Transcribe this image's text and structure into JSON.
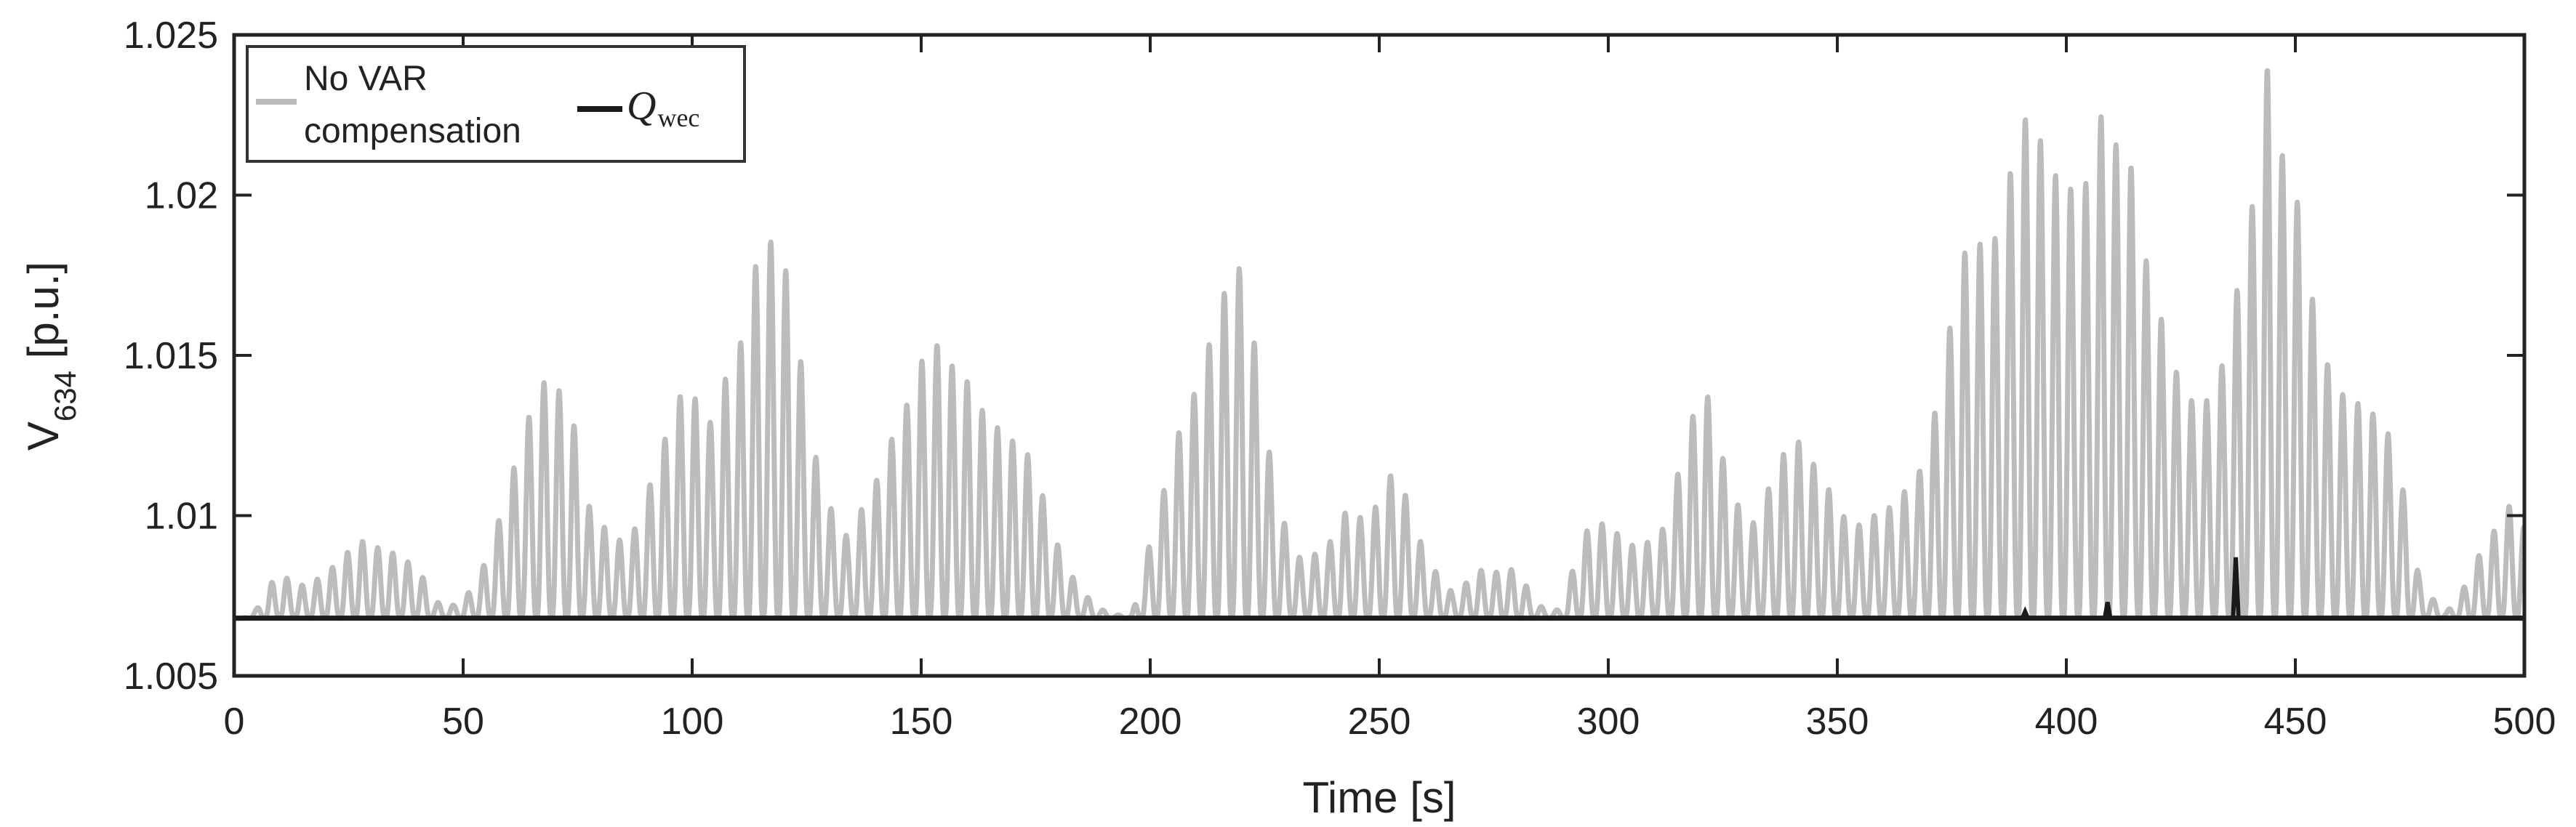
{
  "chart_data": {
    "type": "line",
    "xlabel": "Time [s]",
    "ylabel": {
      "main": "V",
      "subscript": "634",
      "unit": " [p.u.]"
    },
    "xlim": [
      0,
      500
    ],
    "ylim": [
      1.005,
      1.025
    ],
    "xticks": [
      0,
      50,
      100,
      150,
      200,
      250,
      300,
      350,
      400,
      450,
      500
    ],
    "xtick_labels": [
      "0",
      "50",
      "100",
      "150",
      "200",
      "250",
      "300",
      "350",
      "400",
      "450",
      "500"
    ],
    "yticks": [
      1.005,
      1.01,
      1.015,
      1.02,
      1.025
    ],
    "ytick_labels": [
      "1.005",
      "1.01",
      "1.015",
      "1.02",
      "1.025"
    ],
    "grid": false,
    "legend_position": "top-left",
    "series": [
      {
        "name": "No VAR compensation",
        "legend_lines": [
          "No VAR",
          "compensation"
        ],
        "color": "#bcbcbc",
        "baseline": 1.0068,
        "oscillation_period_s": 3.3,
        "peaks": [
          [
            2,
            1.0068
          ],
          [
            5,
            1.0071
          ],
          [
            8,
            1.0079
          ],
          [
            11,
            1.0081
          ],
          [
            14,
            1.0078
          ],
          [
            17,
            1.0079
          ],
          [
            20,
            1.0082
          ],
          [
            24,
            1.0087
          ],
          [
            27,
            1.0093
          ],
          [
            30,
            1.009
          ],
          [
            33,
            1.009
          ],
          [
            36,
            1.0087
          ],
          [
            40,
            1.0084
          ],
          [
            44,
            1.0073
          ],
          [
            48,
            1.0072
          ],
          [
            52,
            1.0077
          ],
          [
            55,
            1.0086
          ],
          [
            59,
            1.0104
          ],
          [
            63,
            1.0125
          ],
          [
            67,
            1.0142
          ],
          [
            71,
            1.0139
          ],
          [
            74,
            1.013
          ],
          [
            77,
            1.0104
          ],
          [
            80,
            1.0098
          ],
          [
            83,
            1.0092
          ],
          [
            86,
            1.0093
          ],
          [
            89,
            1.0099
          ],
          [
            92,
            1.0117
          ],
          [
            95,
            1.0127
          ],
          [
            98,
            1.014
          ],
          [
            101,
            1.0136
          ],
          [
            104,
            1.0129
          ],
          [
            107,
            1.0142
          ],
          [
            110,
            1.0149
          ],
          [
            113,
            1.0175
          ],
          [
            116,
            1.0185
          ],
          [
            119,
            1.0186
          ],
          [
            122,
            1.0166
          ],
          [
            125,
            1.0135
          ],
          [
            128,
            1.011
          ],
          [
            131,
            1.01
          ],
          [
            134,
            1.0093
          ],
          [
            137,
            1.0102
          ],
          [
            140,
            1.011
          ],
          [
            143,
            1.0122
          ],
          [
            147,
            1.0135
          ],
          [
            150,
            1.0148
          ],
          [
            154,
            1.0154
          ],
          [
            157,
            1.0146
          ],
          [
            160,
            1.0142
          ],
          [
            164,
            1.0131
          ],
          [
            167,
            1.0127
          ],
          [
            171,
            1.0122
          ],
          [
            174,
            1.0118
          ],
          [
            177,
            1.0104
          ],
          [
            180,
            1.009
          ],
          [
            183,
            1.0081
          ],
          [
            186,
            1.0075
          ],
          [
            189,
            1.0071
          ],
          [
            192,
            1.0069
          ],
          [
            196,
            1.0069
          ],
          [
            200,
            1.0092
          ],
          [
            203,
            1.0108
          ],
          [
            206,
            1.0125
          ],
          [
            209,
            1.0135
          ],
          [
            212,
            1.015
          ],
          [
            215,
            1.0162
          ],
          [
            218,
            1.0181
          ],
          [
            221,
            1.0173
          ],
          [
            224,
            1.014
          ],
          [
            227,
            1.011
          ],
          [
            230,
            1.0094
          ],
          [
            233,
            1.0086
          ],
          [
            236,
            1.0088
          ],
          [
            239,
            1.0091
          ],
          [
            242,
            1.0101
          ],
          [
            245,
            1.01
          ],
          [
            248,
            1.0098
          ],
          [
            251,
            1.011
          ],
          [
            254,
            1.0115
          ],
          [
            257,
            1.01
          ],
          [
            260,
            1.0088
          ],
          [
            263,
            1.0081
          ],
          [
            266,
            1.0076
          ],
          [
            269,
            1.0079
          ],
          [
            272,
            1.0083
          ],
          [
            275,
            1.0082
          ],
          [
            278,
            1.0084
          ],
          [
            281,
            1.0081
          ],
          [
            284,
            1.0073
          ],
          [
            287,
            1.007
          ],
          [
            290,
            1.0071
          ],
          [
            294,
            1.0093
          ],
          [
            297,
            1.0098
          ],
          [
            300,
            1.0097
          ],
          [
            303,
            1.0093
          ],
          [
            306,
            1.009
          ],
          [
            309,
            1.0092
          ],
          [
            312,
            1.0096
          ],
          [
            315,
            1.0112
          ],
          [
            318,
            1.0129
          ],
          [
            321,
            1.0142
          ],
          [
            324,
            1.0122
          ],
          [
            327,
            1.011
          ],
          [
            330,
            1.0095
          ],
          [
            333,
            1.01
          ],
          [
            337,
            1.0117
          ],
          [
            340,
            1.0122
          ],
          [
            343,
            1.0124
          ],
          [
            346,
            1.0111
          ],
          [
            349,
            1.0107
          ],
          [
            352,
            1.0098
          ],
          [
            355,
            1.0097
          ],
          [
            358,
            1.01
          ],
          [
            361,
            1.0102
          ],
          [
            365,
            1.0108
          ],
          [
            368,
            1.0114
          ],
          [
            371,
            1.013
          ],
          [
            374,
            1.0153
          ],
          [
            377,
            1.0182
          ],
          [
            380,
            1.0182
          ],
          [
            383,
            1.0189
          ],
          [
            386,
            1.0184
          ],
          [
            389,
            1.0223
          ],
          [
            392,
            1.0224
          ],
          [
            395,
            1.0215
          ],
          [
            398,
            1.0205
          ],
          [
            401,
            1.0202
          ],
          [
            405,
            1.0204
          ],
          [
            408,
            1.0228
          ],
          [
            411,
            1.0215
          ],
          [
            414,
            1.021
          ],
          [
            417,
            1.0182
          ],
          [
            420,
            1.0165
          ],
          [
            423,
            1.015
          ],
          [
            426,
            1.0135
          ],
          [
            429,
            1.0137
          ],
          [
            432,
            1.0135
          ],
          [
            435,
            1.0153
          ],
          [
            438,
            1.0176
          ],
          [
            441,
            1.02
          ],
          [
            444,
            1.0241
          ],
          [
            447,
            1.0213
          ],
          [
            450,
            1.0202
          ],
          [
            453,
            1.0173
          ],
          [
            456,
            1.0151
          ],
          [
            459,
            1.014
          ],
          [
            462,
            1.0135
          ],
          [
            465,
            1.0135
          ],
          [
            468,
            1.013
          ],
          [
            471,
            1.0124
          ],
          [
            474,
            1.0105
          ],
          [
            477,
            1.0081
          ],
          [
            480,
            1.0074
          ],
          [
            483,
            1.007
          ],
          [
            486,
            1.0075
          ],
          [
            489,
            1.0085
          ],
          [
            492,
            1.0092
          ],
          [
            495,
            1.0099
          ],
          [
            498,
            1.0106
          ],
          [
            500,
            1.0096
          ]
        ]
      },
      {
        "name": "Q_wec",
        "legend_math": "Q",
        "legend_sub": "wec",
        "color": "#1a1a1a",
        "baseline": 1.0068,
        "spikes": [
          [
            391,
            1.007
          ],
          [
            409,
            1.0073
          ],
          [
            437,
            1.0087
          ]
        ]
      }
    ]
  }
}
